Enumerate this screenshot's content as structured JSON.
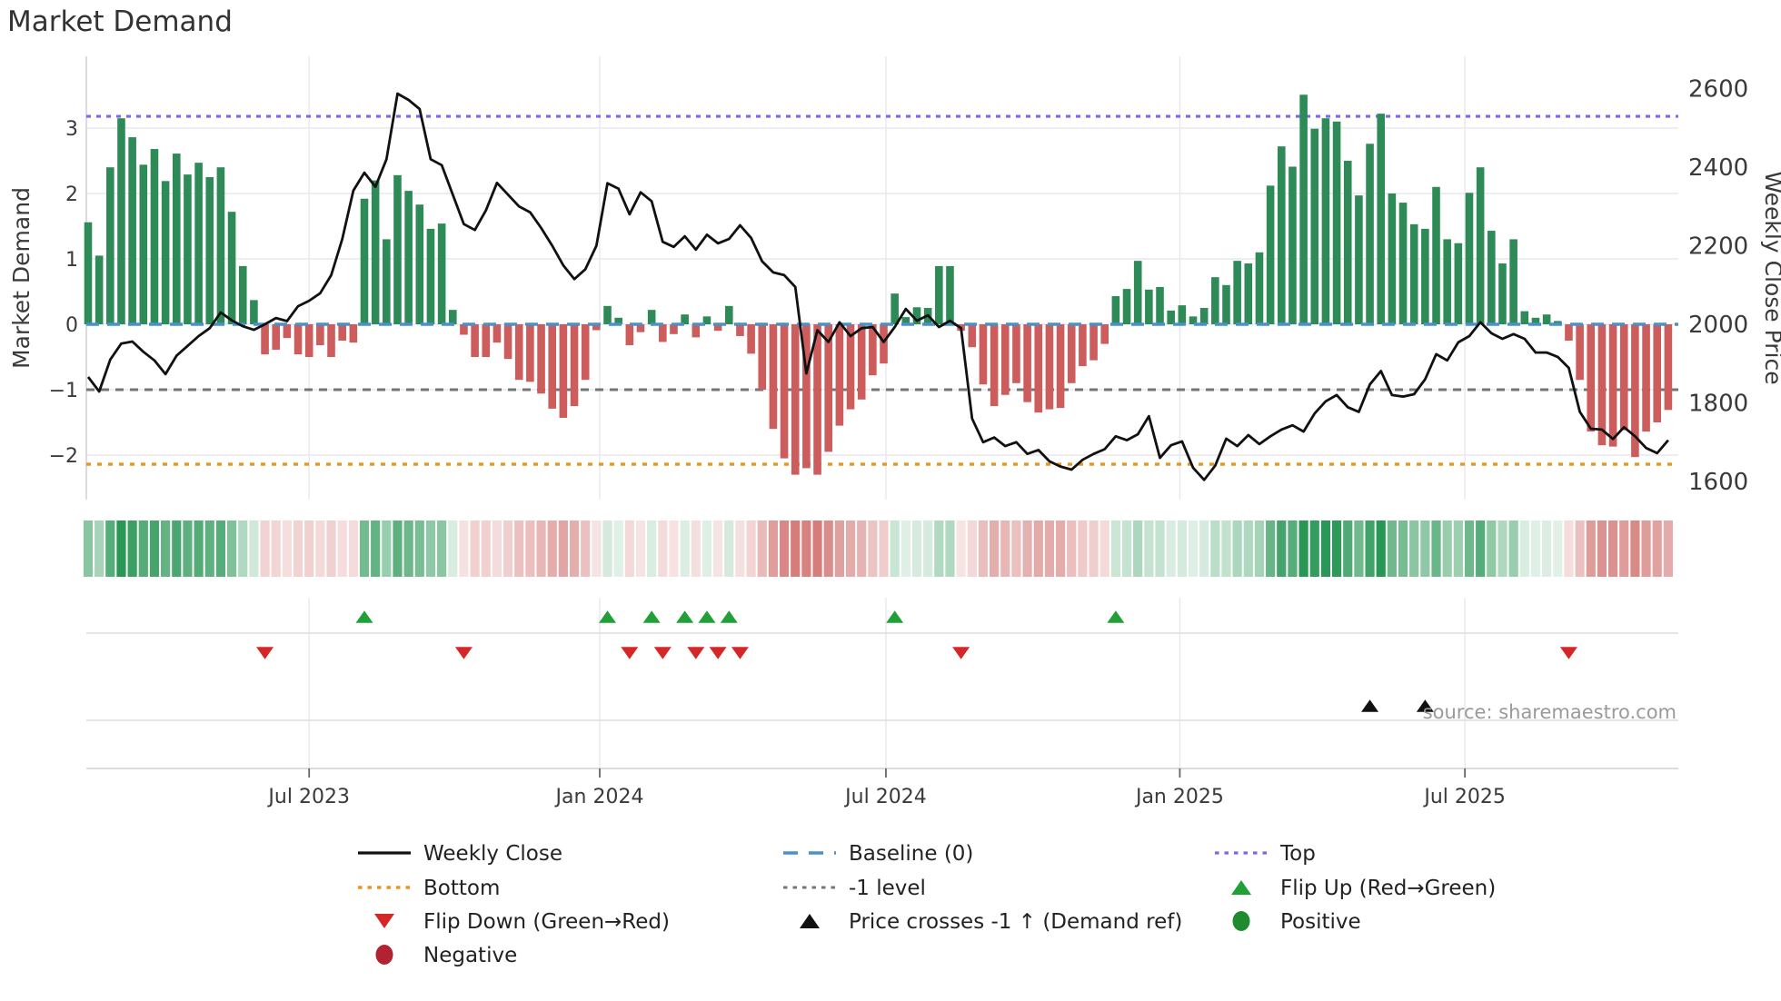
{
  "title": "Market Demand",
  "source_text": "source: sharemaestro.com",
  "axes": {
    "left_label": "Market Demand",
    "right_label": "Weekly Close Price",
    "left_ticks": [
      {
        "v": 3,
        "label": "3"
      },
      {
        "v": 2,
        "label": "2"
      },
      {
        "v": 1,
        "label": "1"
      },
      {
        "v": 0,
        "label": "0"
      },
      {
        "v": -1,
        "label": "−1"
      },
      {
        "v": -2,
        "label": "−2"
      }
    ],
    "right_ticks": [
      {
        "p": 2600,
        "label": "2600"
      },
      {
        "p": 2400,
        "label": "2400"
      },
      {
        "p": 2200,
        "label": "2200"
      },
      {
        "p": 2000,
        "label": "2000"
      },
      {
        "p": 1800,
        "label": "1800"
      },
      {
        "p": 1600,
        "label": "1600"
      }
    ],
    "x_ticks": [
      {
        "week": 20.0,
        "label": "Jul 2023"
      },
      {
        "week": 46.3,
        "label": "Jan 2024"
      },
      {
        "week": 72.2,
        "label": "Jul 2024"
      },
      {
        "week": 98.8,
        "label": "Jan 2025"
      },
      {
        "week": 124.6,
        "label": "Jul 2025"
      }
    ]
  },
  "chart_data": {
    "type": "bar",
    "title": "Market Demand",
    "ylabel_left": "Market Demand",
    "ylabel_right": "Weekly Close Price",
    "ylim_left": [
      -2.7,
      4.1
    ],
    "ylim_right": [
      1554,
      2682
    ],
    "grid": true,
    "legend_position": "bottom",
    "reference_lines": {
      "top": 3.18,
      "baseline": 0.0,
      "minus_one": -1.0,
      "bottom": -2.14
    },
    "series": [
      {
        "name": "Market Demand",
        "type": "bar",
        "values": [
          1.56,
          1.05,
          2.4,
          3.15,
          2.86,
          2.44,
          2.68,
          2.19,
          2.61,
          2.29,
          2.47,
          2.25,
          2.4,
          1.72,
          0.89,
          0.37,
          -0.46,
          -0.39,
          -0.21,
          -0.46,
          -0.5,
          -0.32,
          -0.5,
          -0.25,
          -0.28,
          1.92,
          2.2,
          1.3,
          2.28,
          2.04,
          1.83,
          1.46,
          1.54,
          0.22,
          -0.16,
          -0.5,
          -0.5,
          -0.28,
          -0.53,
          -0.85,
          -0.88,
          -1.06,
          -1.29,
          -1.43,
          -1.25,
          -0.85,
          -0.09,
          0.28,
          0.1,
          -0.32,
          -0.12,
          0.22,
          -0.27,
          -0.15,
          0.15,
          -0.2,
          0.12,
          -0.1,
          0.28,
          -0.18,
          -0.45,
          -1.0,
          -1.6,
          -2.05,
          -2.3,
          -2.2,
          -2.3,
          -1.95,
          -1.55,
          -1.3,
          -1.15,
          -0.78,
          -0.6,
          0.47,
          0.11,
          0.26,
          0.25,
          0.89,
          0.89,
          -0.1,
          -0.35,
          -0.92,
          -1.25,
          -1.08,
          -0.9,
          -1.19,
          -1.35,
          -1.3,
          -1.28,
          -0.9,
          -0.64,
          -0.55,
          -0.3,
          0.43,
          0.54,
          0.97,
          0.53,
          0.57,
          0.21,
          0.29,
          0.12,
          0.25,
          0.72,
          0.6,
          0.97,
          0.93,
          1.1,
          2.12,
          2.72,
          2.41,
          3.51,
          2.99,
          3.15,
          3.1,
          2.5,
          1.97,
          2.76,
          3.22,
          2.0,
          1.86,
          1.53,
          1.46,
          2.1,
          1.3,
          1.24,
          2.01,
          2.4,
          1.43,
          0.93,
          1.3,
          0.2,
          0.1,
          0.15,
          0.05,
          -0.25,
          -0.85,
          -1.64,
          -1.85,
          -1.87,
          -1.62,
          -2.03,
          -1.64,
          -1.5,
          -1.31
        ]
      },
      {
        "name": "Weekly Close",
        "type": "line",
        "values": [
          1866,
          1829,
          1910,
          1951,
          1956,
          1930,
          1908,
          1873,
          1920,
          1945,
          1970,
          1990,
          2030,
          2010,
          1995,
          1986,
          2000,
          2016,
          2008,
          2046,
          2060,
          2079,
          2125,
          2217,
          2340,
          2386,
          2350,
          2420,
          2587,
          2571,
          2548,
          2420,
          2405,
          2330,
          2255,
          2240,
          2290,
          2360,
          2330,
          2300,
          2285,
          2245,
          2200,
          2150,
          2115,
          2140,
          2200,
          2359,
          2345,
          2280,
          2336,
          2313,
          2210,
          2197,
          2224,
          2190,
          2228,
          2206,
          2217,
          2252,
          2220,
          2160,
          2132,
          2125,
          2095,
          1875,
          1985,
          1955,
          2005,
          1970,
          1990,
          1993,
          1955,
          1993,
          2039,
          2009,
          2023,
          1993,
          2009,
          1990,
          1760,
          1700,
          1712,
          1690,
          1700,
          1670,
          1680,
          1651,
          1638,
          1630,
          1655,
          1670,
          1682,
          1715,
          1705,
          1720,
          1766,
          1660,
          1692,
          1702,
          1635,
          1604,
          1640,
          1709,
          1690,
          1718,
          1695,
          1715,
          1732,
          1743,
          1727,
          1773,
          1804,
          1820,
          1789,
          1777,
          1847,
          1881,
          1820,
          1816,
          1822,
          1860,
          1924,
          1908,
          1954,
          1970,
          2005,
          1977,
          1963,
          1975,
          1963,
          1928,
          1928,
          1917,
          1889,
          1777,
          1734,
          1732,
          1708,
          1738,
          1715,
          1685,
          1672,
          1705
        ]
      }
    ],
    "price_cross_weeks": [
      116,
      121
    ],
    "heatmap": "derived from Market Demand values (green positive / red negative, intensity by magnitude)"
  },
  "legend": {
    "items": [
      {
        "label": "Weekly Close",
        "swatch": "line-black",
        "name": "legend-weekly-close"
      },
      {
        "label": "Baseline (0)",
        "swatch": "dash-blue",
        "name": "legend-baseline"
      },
      {
        "label": "Top",
        "swatch": "dot-purple",
        "name": "legend-top"
      },
      {
        "label": "Bottom",
        "swatch": "dot-orange",
        "name": "legend-bottom"
      },
      {
        "label": "-1 level",
        "swatch": "dot-gray",
        "name": "legend-minus-one"
      },
      {
        "label": "Flip Up (Red→Green)",
        "swatch": "tri-up-green",
        "name": "legend-flip-up"
      },
      {
        "label": "Flip Down (Green→Red)",
        "swatch": "tri-down-red",
        "name": "legend-flip-down"
      },
      {
        "label": "Price crosses -1 ↑ (Demand ref)",
        "swatch": "tri-up-black",
        "name": "legend-price-cross"
      },
      {
        "label": "Positive",
        "swatch": "circle-green",
        "name": "legend-positive"
      },
      {
        "label": "Negative",
        "swatch": "circle-darkred",
        "name": "legend-negative"
      }
    ]
  },
  "colors": {
    "bar_positive": "#2e8b57",
    "bar_negative": "#cd5c5c",
    "price_line": "#111111",
    "baseline": "#4a90c9",
    "top_line": "#7b68ee",
    "minus_one_line": "#757575",
    "bottom_line": "#e8961e",
    "flip_up": "#21a038",
    "flip_down": "#d62728",
    "price_cross": "#111111",
    "positive_dot": "#1e8c2e",
    "negative_dot": "#b22230",
    "grid": "#e7e7ee",
    "spine": "#cfcfd6",
    "text": "#3a3a3a",
    "source": "#9a9a9a",
    "heat_pos_rgb": [
      40,
      150,
      84
    ],
    "heat_neg_rgb": [
      198,
      83,
      80
    ]
  }
}
